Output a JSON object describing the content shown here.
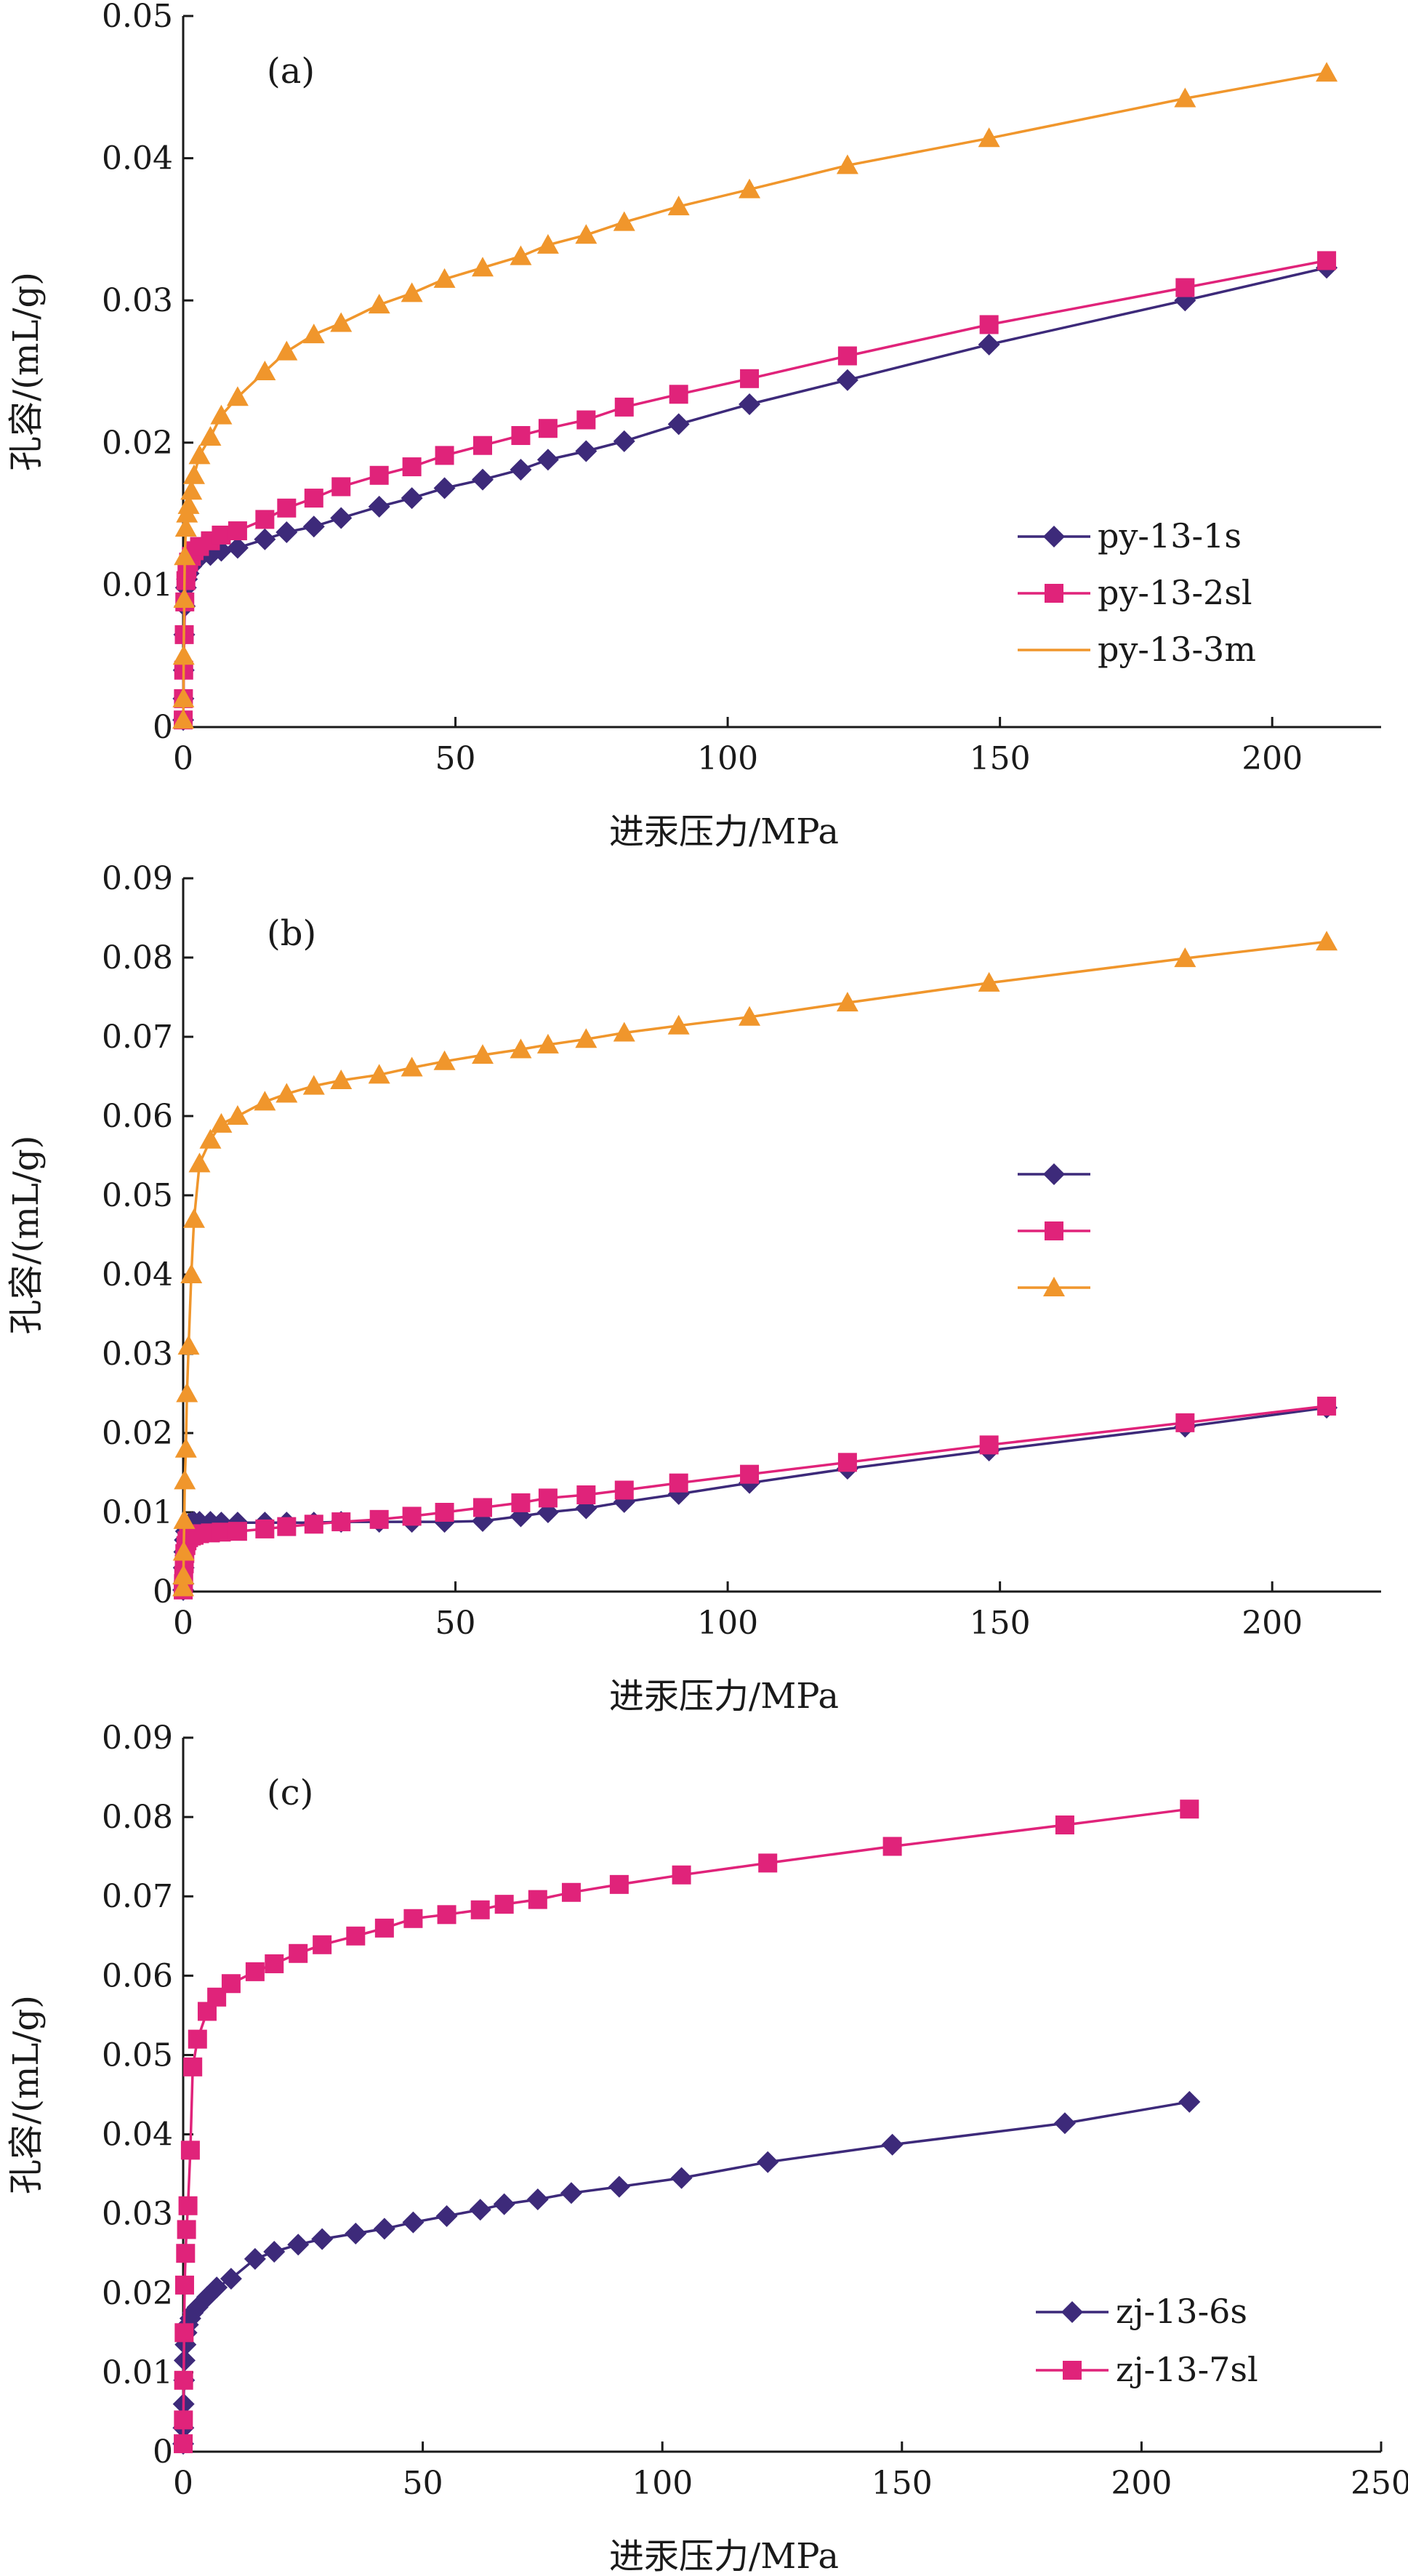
{
  "chart_data": [
    {
      "type": "line",
      "panel_label": "(a)",
      "xlabel": "进汞压力/MPa",
      "ylabel": "孔容/(mL/g)",
      "xlim": [
        0,
        220
      ],
      "ylim": [
        0,
        0.05
      ],
      "xticks": [
        0,
        50,
        100,
        150,
        200
      ],
      "xtick_labels": [
        "0",
        "50",
        "100",
        "150",
        "200"
      ],
      "yticks": [
        0,
        0.01,
        0.02,
        0.03,
        0.04,
        0.05
      ],
      "ytick_labels": [
        "0",
        "0.01",
        "0.02",
        "0.03",
        "0.04",
        "0.05"
      ],
      "grid": false,
      "legend_position": "center-right",
      "series": [
        {
          "name": "py-13-1s",
          "color": "#3d2a7a",
          "marker": "diamond",
          "x": [
            0.01,
            0.05,
            0.1,
            0.2,
            0.3,
            0.5,
            0.7,
            1,
            1.5,
            2,
            3,
            5,
            7,
            10,
            15,
            19,
            24,
            29,
            36,
            42,
            48,
            55,
            62,
            67,
            74,
            81,
            91,
            104,
            122,
            148,
            184,
            210
          ],
          "y": [
            0.0005,
            0.002,
            0.004,
            0.0065,
            0.0085,
            0.0098,
            0.0104,
            0.0108,
            0.0113,
            0.0116,
            0.0119,
            0.0121,
            0.0124,
            0.0126,
            0.0132,
            0.0137,
            0.0141,
            0.0147,
            0.0155,
            0.0161,
            0.0168,
            0.0174,
            0.0181,
            0.0188,
            0.0194,
            0.0201,
            0.0213,
            0.0227,
            0.0244,
            0.0269,
            0.03,
            0.0323
          ]
        },
        {
          "name": "py-13-2sl",
          "color": "#e0237a",
          "marker": "square",
          "x": [
            0.01,
            0.05,
            0.1,
            0.2,
            0.3,
            0.5,
            0.7,
            1,
            1.5,
            2,
            3,
            5,
            7,
            10,
            15,
            19,
            24,
            29,
            36,
            42,
            48,
            55,
            62,
            67,
            74,
            81,
            91,
            104,
            122,
            148,
            184,
            210
          ],
          "y": [
            0.0005,
            0.002,
            0.004,
            0.0065,
            0.0088,
            0.0103,
            0.0111,
            0.0116,
            0.012,
            0.0124,
            0.0127,
            0.0131,
            0.0135,
            0.0138,
            0.0146,
            0.0154,
            0.0161,
            0.0169,
            0.0177,
            0.0183,
            0.0191,
            0.0198,
            0.0205,
            0.021,
            0.0216,
            0.0225,
            0.0234,
            0.0245,
            0.0261,
            0.0283,
            0.0309,
            0.0328
          ]
        },
        {
          "name": "py-13-3m",
          "color": "#f0962c",
          "marker": "triangle",
          "x": [
            0.01,
            0.05,
            0.1,
            0.2,
            0.3,
            0.5,
            0.7,
            1,
            1.5,
            2,
            3,
            5,
            7,
            10,
            15,
            19,
            24,
            29,
            36,
            42,
            48,
            55,
            62,
            67,
            74,
            81,
            91,
            104,
            122,
            148,
            184,
            210
          ],
          "y": [
            0.0005,
            0.002,
            0.005,
            0.009,
            0.012,
            0.014,
            0.015,
            0.0156,
            0.0166,
            0.0177,
            0.0191,
            0.0204,
            0.0219,
            0.0232,
            0.025,
            0.0264,
            0.0276,
            0.0284,
            0.0297,
            0.0305,
            0.0315,
            0.0323,
            0.0331,
            0.0339,
            0.0346,
            0.0355,
            0.0366,
            0.0378,
            0.0395,
            0.0414,
            0.0442,
            0.046
          ]
        }
      ]
    },
    {
      "type": "line",
      "panel_label": "(b)",
      "xlabel": "进汞压力/MPa",
      "ylabel": "孔容/(mL/g)",
      "xlim": [
        0,
        220
      ],
      "ylim": [
        0,
        0.09
      ],
      "xticks": [
        0,
        50,
        100,
        150,
        200
      ],
      "xtick_labels": [
        "0",
        "50",
        "100",
        "150",
        "200"
      ],
      "yticks": [
        0,
        0.01,
        0.02,
        0.03,
        0.04,
        0.05,
        0.06,
        0.07,
        0.08,
        0.09
      ],
      "ytick_labels": [
        "0",
        "0.01",
        "0.02",
        "0.03",
        "0.04",
        "0.05",
        "0.06",
        "0.07",
        "0.08",
        "0.09"
      ],
      "grid": false,
      "legend_position": "center-right",
      "series": [
        {
          "color": "#3d2a7a",
          "marker": "diamond",
          "x": [
            0.01,
            0.05,
            0.1,
            0.2,
            0.3,
            0.5,
            0.7,
            1,
            1.5,
            2,
            3,
            5,
            7,
            10,
            15,
            19,
            24,
            29,
            36,
            42,
            48,
            55,
            62,
            67,
            74,
            81,
            91,
            104,
            122,
            148,
            184,
            210
          ],
          "y": [
            0.0002,
            0.001,
            0.003,
            0.005,
            0.0065,
            0.0076,
            0.0082,
            0.0085,
            0.0087,
            0.0088,
            0.0088,
            0.0088,
            0.0087,
            0.0087,
            0.0087,
            0.0087,
            0.0087,
            0.0088,
            0.0088,
            0.0088,
            0.0088,
            0.0089,
            0.0095,
            0.01,
            0.0105,
            0.0113,
            0.0123,
            0.0137,
            0.0155,
            0.0178,
            0.0208,
            0.0232
          ]
        },
        {
          "color": "#e0237a",
          "marker": "square",
          "x": [
            0.01,
            0.05,
            0.1,
            0.2,
            0.3,
            0.5,
            0.7,
            1,
            1.5,
            2,
            3,
            5,
            7,
            10,
            15,
            19,
            24,
            29,
            36,
            42,
            48,
            55,
            62,
            67,
            74,
            81,
            91,
            104,
            122,
            148,
            184,
            210
          ],
          "y": [
            0.0002,
            0.001,
            0.002,
            0.0035,
            0.0048,
            0.0058,
            0.0064,
            0.0068,
            0.007,
            0.0071,
            0.0073,
            0.0074,
            0.0075,
            0.0076,
            0.0079,
            0.0082,
            0.0085,
            0.0088,
            0.0091,
            0.0095,
            0.01,
            0.0106,
            0.0112,
            0.0118,
            0.0122,
            0.0128,
            0.0137,
            0.0148,
            0.0163,
            0.0185,
            0.0213,
            0.0234
          ]
        },
        {
          "color": "#f0962c",
          "marker": "triangle",
          "x": [
            0.01,
            0.05,
            0.1,
            0.2,
            0.3,
            0.5,
            0.7,
            1,
            1.5,
            2,
            3,
            5,
            7,
            10,
            15,
            19,
            24,
            29,
            36,
            42,
            48,
            55,
            62,
            67,
            74,
            81,
            91,
            104,
            122,
            148,
            184,
            210
          ],
          "y": [
            0.0005,
            0.002,
            0.005,
            0.009,
            0.014,
            0.018,
            0.025,
            0.031,
            0.04,
            0.047,
            0.054,
            0.057,
            0.059,
            0.06,
            0.0618,
            0.0628,
            0.0638,
            0.0645,
            0.0652,
            0.0661,
            0.0669,
            0.0677,
            0.0684,
            0.069,
            0.0697,
            0.0705,
            0.0714,
            0.0725,
            0.0743,
            0.0768,
            0.0799,
            0.082
          ]
        }
      ]
    },
    {
      "type": "line",
      "panel_label": "(c)",
      "xlabel": "进汞压力/MPa",
      "ylabel": "孔容/(mL/g)",
      "xlim": [
        0,
        250
      ],
      "ylim": [
        0,
        0.09
      ],
      "xticks": [
        0,
        50,
        100,
        150,
        200,
        250
      ],
      "xtick_labels": [
        "0",
        "50",
        "100",
        "150",
        "200",
        "250"
      ],
      "yticks": [
        0,
        0.01,
        0.02,
        0.03,
        0.04,
        0.05,
        0.06,
        0.07,
        0.08,
        0.09
      ],
      "ytick_labels": [
        "0",
        "0.01",
        "0.02",
        "0.03",
        "0.04",
        "0.05",
        "0.06",
        "0.07",
        "0.08",
        "0.09"
      ],
      "grid": false,
      "legend_position": "bottom-right",
      "series": [
        {
          "name": "zj-13-6s",
          "color": "#3d2a7a",
          "marker": "diamond",
          "x": [
            0.01,
            0.05,
            0.1,
            0.2,
            0.3,
            0.5,
            0.7,
            1,
            1.5,
            2,
            3,
            5,
            7,
            10,
            15,
            19,
            24,
            29,
            36,
            42,
            48,
            55,
            62,
            67,
            74,
            81,
            91,
            104,
            122,
            148,
            184,
            210
          ],
          "y": [
            0.001,
            0.003,
            0.006,
            0.009,
            0.0115,
            0.0135,
            0.015,
            0.016,
            0.0168,
            0.0175,
            0.0182,
            0.0195,
            0.0207,
            0.0218,
            0.0243,
            0.0252,
            0.0261,
            0.0268,
            0.0275,
            0.0281,
            0.0289,
            0.0297,
            0.0305,
            0.0312,
            0.0318,
            0.0326,
            0.0334,
            0.0345,
            0.0365,
            0.0387,
            0.0414,
            0.0441
          ]
        },
        {
          "name": "zj-13-7sl",
          "color": "#e0237a",
          "marker": "square",
          "x": [
            0.01,
            0.05,
            0.1,
            0.2,
            0.3,
            0.5,
            0.7,
            1,
            1.5,
            2,
            3,
            5,
            7,
            10,
            15,
            19,
            24,
            29,
            36,
            42,
            48,
            55,
            62,
            67,
            74,
            81,
            91,
            104,
            122,
            148,
            184,
            210
          ],
          "y": [
            0.001,
            0.004,
            0.009,
            0.015,
            0.021,
            0.025,
            0.028,
            0.031,
            0.038,
            0.0485,
            0.052,
            0.0555,
            0.0573,
            0.059,
            0.0605,
            0.0615,
            0.0628,
            0.0639,
            0.065,
            0.066,
            0.0672,
            0.0677,
            0.0683,
            0.069,
            0.0696,
            0.0705,
            0.0715,
            0.0727,
            0.0742,
            0.0763,
            0.079,
            0.081
          ]
        }
      ]
    }
  ]
}
